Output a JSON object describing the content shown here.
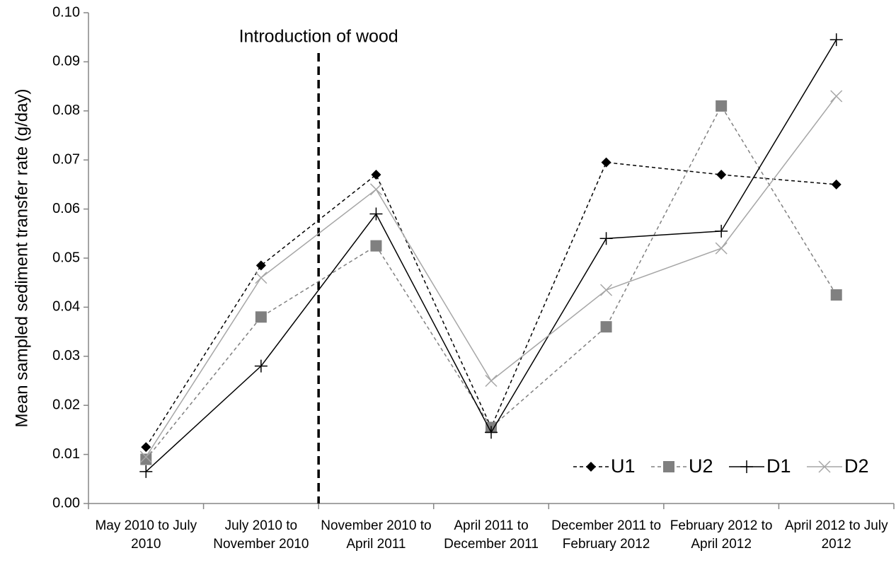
{
  "chart_data": {
    "type": "line",
    "y_label": "Mean sampled sediment transfer rate (g/day)",
    "annotation": "Introduction of wood",
    "categories": [
      "May 2010 to July 2010",
      "July 2010 to November 2010",
      "November 2010 to April 2011",
      "April 2011 to December 2011",
      "December 2011 to February 2012",
      "February 2012 to April 2012",
      "April 2012 to July 2012"
    ],
    "series": [
      {
        "name": "U1",
        "color": "#000000",
        "dashed": true,
        "marker": "diamond",
        "values": [
          0.0115,
          0.0485,
          0.067,
          0.0155,
          0.0695,
          0.067,
          0.065
        ]
      },
      {
        "name": "U2",
        "color": "#808080",
        "dashed": true,
        "marker": "square",
        "values": [
          0.009,
          0.038,
          0.0525,
          0.0155,
          0.036,
          0.081,
          0.0425
        ]
      },
      {
        "name": "D1",
        "color": "#000000",
        "dashed": false,
        "marker": "plus",
        "values": [
          0.0065,
          0.028,
          0.059,
          0.0145,
          0.054,
          0.0555,
          0.0945
        ]
      },
      {
        "name": "D2",
        "color": "#a6a6a6",
        "dashed": false,
        "marker": "x",
        "values": [
          0.0095,
          0.046,
          0.064,
          0.025,
          0.0435,
          0.052,
          0.083
        ]
      }
    ],
    "ylim": [
      0,
      0.1
    ],
    "yticks": [
      {
        "value": 0,
        "label": "0.00"
      },
      {
        "value": 0.01,
        "label": "0.01"
      },
      {
        "value": 0.02,
        "label": "0.02"
      },
      {
        "value": 0.03,
        "label": "0.03"
      },
      {
        "value": 0.04,
        "label": "0.04"
      },
      {
        "value": 0.05,
        "label": "0.05"
      },
      {
        "value": 0.06,
        "label": "0.06"
      },
      {
        "value": 0.07,
        "label": "0.07"
      },
      {
        "value": 0.08,
        "label": "0.08"
      },
      {
        "value": 0.09,
        "label": "0.09"
      },
      {
        "value": 0.1,
        "label": "0.10"
      }
    ],
    "grid": false,
    "legend": "bottom-right"
  }
}
